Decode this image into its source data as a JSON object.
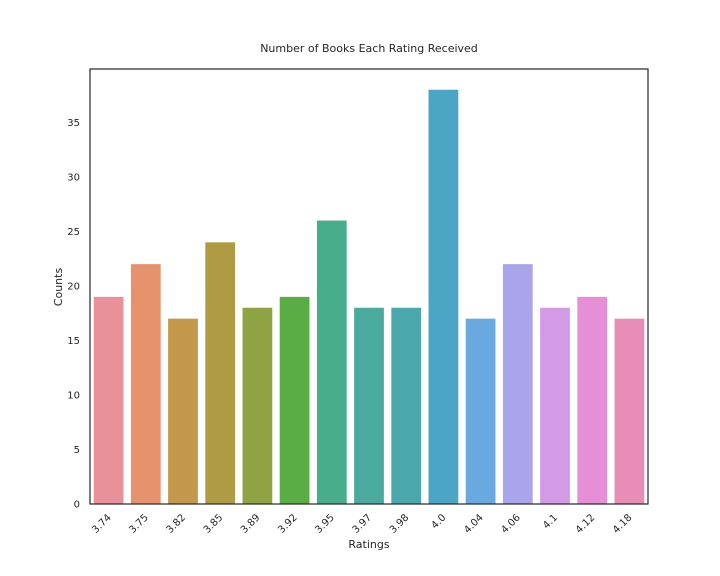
{
  "chart_data": {
    "type": "bar",
    "title": "Number of Books Each Rating Received",
    "xlabel": "Ratings",
    "ylabel": "Counts",
    "categories": [
      "3.74",
      "3.75",
      "3.82",
      "3.85",
      "3.89",
      "3.92",
      "3.95",
      "3.97",
      "3.98",
      "4.0",
      "4.04",
      "4.06",
      "4.1",
      "4.12",
      "4.18"
    ],
    "values": [
      19,
      22,
      17,
      24,
      18,
      19,
      26,
      18,
      18,
      38,
      17,
      22,
      18,
      19,
      17
    ],
    "colors": [
      "#e8919b",
      "#e5926d",
      "#c3984a",
      "#ae9c45",
      "#8fa244",
      "#5aac44",
      "#47ad8a",
      "#49aa9d",
      "#4aa8ac",
      "#4aa6c4",
      "#6aa8e0",
      "#aaa5ea",
      "#d39be6",
      "#e68ed6",
      "#e88db6"
    ],
    "ylim": [
      0,
      39.9
    ],
    "yticks": [
      0,
      5,
      10,
      15,
      20,
      25,
      30,
      35
    ],
    "grid": false
  }
}
